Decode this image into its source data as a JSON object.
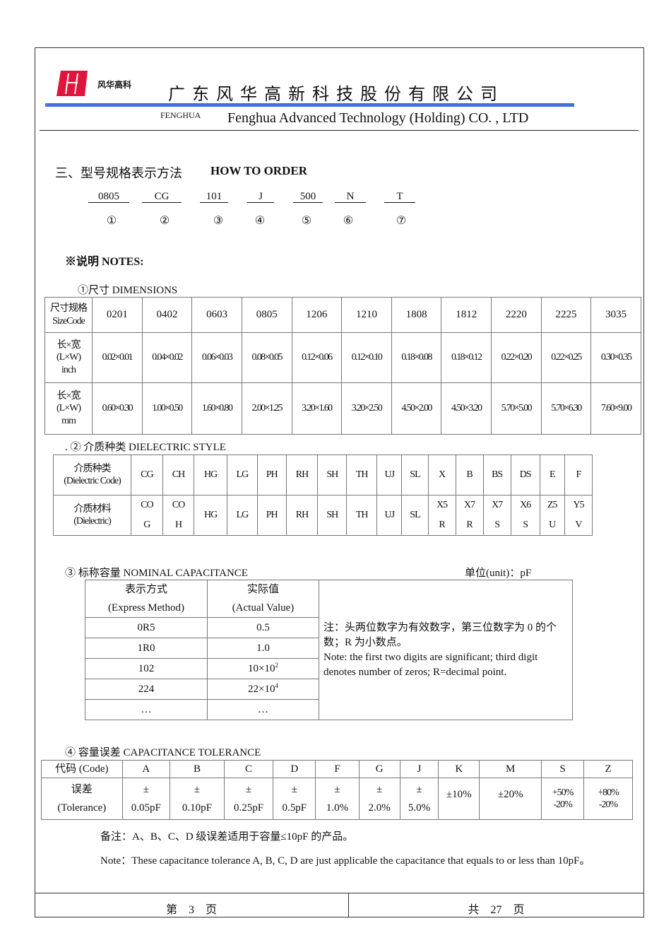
{
  "header": {
    "logo_text": "风华高科",
    "company_cn": "广 东 风 华 高 新 科 技 股 份 有 限 公 司",
    "brand": "FENGHUA",
    "company_en": "Fenghua Advanced Technology (Holding) CO. , LTD",
    "accent_color": "#3f6fe0",
    "logo_color": "#e0143c"
  },
  "section": {
    "title_cn": "三、型号规格表示方法",
    "title_en": "HOW TO ORDER"
  },
  "order_codes": [
    "0805",
    "CG",
    "101",
    "J",
    "500",
    "N",
    "T"
  ],
  "order_numbers": [
    "①",
    "②",
    "③",
    "④",
    "⑤",
    "⑥",
    "⑦"
  ],
  "notes_title": "※说明  NOTES:",
  "dimensions": {
    "title": "①尺寸    DIMENSIONS",
    "row_headers": [
      [
        "尺寸规格",
        "SizeCode"
      ],
      [
        "长×宽",
        "(L×W)",
        "inch"
      ],
      [
        "长×宽",
        "(L×W)",
        "mm"
      ]
    ],
    "codes": [
      "0201",
      "0402",
      "0603",
      "0805",
      "1206",
      "1210",
      "1808",
      "1812",
      "2220",
      "2225",
      "3035"
    ],
    "inch": [
      "0.02×0.01",
      "0.04×0.02",
      "0.06×0.03",
      "0.08×0.05",
      "0.12×0.06",
      "0.12×0.10",
      "0.18×0.08",
      "0.18×0.12",
      "0.22×0.20",
      "0.22×0.25",
      "0.30×0.35"
    ],
    "mm": [
      "0.60×0.30",
      "1.00×0.50",
      "1.60×0.80",
      "2.00×1.25",
      "3.20×1.60",
      "3.20×2.50",
      "4.50×2.00",
      "4.50×3.20",
      "5.70×5.00",
      "5.70×6.30",
      "7.60×9.00"
    ]
  },
  "dielectric": {
    "title": ". ② 介质种类 DIELECTRIC STYLE",
    "row_headers": [
      [
        "介质种类",
        "(Dielectric Code)"
      ],
      [
        "介质材料",
        "(Dielectric)"
      ]
    ],
    "codes": [
      "CG",
      "CH",
      "HG",
      "LG",
      "PH",
      "RH",
      "SH",
      "TH",
      "UJ",
      "SL",
      "X",
      "B",
      "BS",
      "DS",
      "E",
      "F"
    ],
    "materials": [
      [
        "CO",
        "G"
      ],
      [
        "CO",
        "H"
      ],
      [
        "HG"
      ],
      [
        "LG"
      ],
      [
        "PH"
      ],
      [
        "RH"
      ],
      [
        "SH"
      ],
      [
        "TH"
      ],
      [
        "UJ"
      ],
      [
        "SL"
      ],
      [
        "X5",
        "R"
      ],
      [
        "X7",
        "R"
      ],
      [
        "X7",
        "S"
      ],
      [
        "X6",
        "S"
      ],
      [
        "Z5",
        "U"
      ],
      [
        "Y5",
        "V"
      ]
    ]
  },
  "capacitance": {
    "title": "③  标称容量  NOMINAL CAPACITANCE",
    "unit": "单位(unit)：pF",
    "headers": [
      [
        "表示方式",
        "(Express Method)"
      ],
      [
        "实际值",
        "(Actual Value)"
      ]
    ],
    "rows": [
      [
        "0R5",
        "0.5",
        ""
      ],
      [
        "1R0",
        "1.0",
        ""
      ],
      [
        "102",
        "10×10",
        "2"
      ],
      [
        "224",
        "22×10",
        "4"
      ],
      [
        "…",
        "…",
        ""
      ]
    ],
    "note_cn": "注：头两位数字为有效数字，第三位数字为 0 的个数；R 为小数点。",
    "note_en": "Note: the first two digits are significant; third digit denotes number of zeros; R=decimal point."
  },
  "tolerance": {
    "title": "④  容量误差 CAPACITANCE TOLERANCE",
    "code_header": "代码 (Code)",
    "tol_header": [
      "误差",
      "(Tolerance)"
    ],
    "codes": [
      "A",
      "B",
      "C",
      "D",
      "F",
      "G",
      "J",
      "K",
      "M",
      "S",
      "Z"
    ],
    "values": [
      [
        "±",
        "0.05pF"
      ],
      [
        "±",
        "0.10pF"
      ],
      [
        "±",
        "0.25pF"
      ],
      [
        "±",
        "0.5pF"
      ],
      [
        "±",
        "1.0%"
      ],
      [
        "±",
        "2.0%"
      ],
      [
        "±",
        "5.0%"
      ],
      [
        "±10%"
      ],
      [
        "±20%"
      ],
      [
        "+50%",
        "-20%"
      ],
      [
        "+80%",
        "-20%"
      ]
    ],
    "remark_cn": "备注：A、B、C、D 级误差适用于容量≤10pF 的产品。",
    "remark_en": "Note：These capacitance tolerance A, B, C, D are just applicable the capacitance that equals to or less than 10pF。"
  },
  "footer": {
    "page": "第    3    页",
    "total": "共    27    页"
  }
}
